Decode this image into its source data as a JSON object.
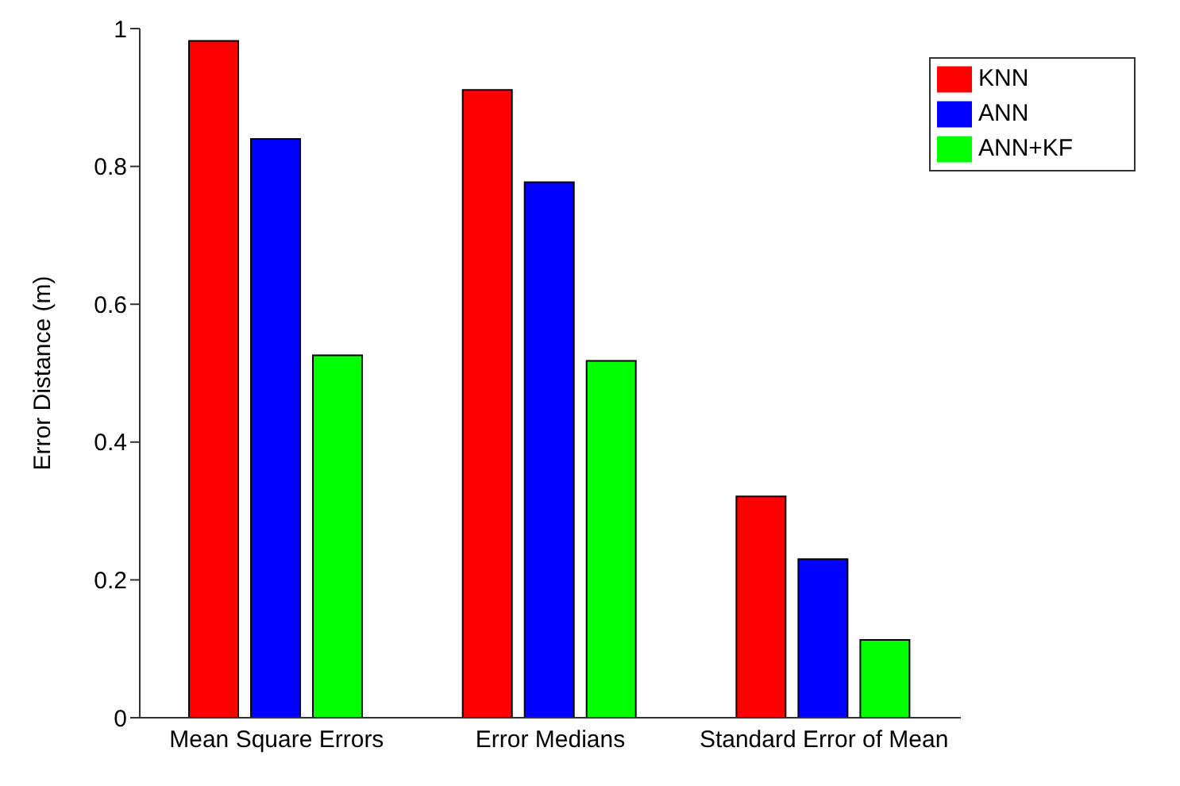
{
  "chart_data": {
    "type": "bar",
    "ylabel": "Error Distance (m)",
    "categories": [
      "Mean Square Errors",
      "Error Medians",
      "Standard Error of Mean"
    ],
    "series": [
      {
        "name": "KNN",
        "color": "#ff0000",
        "values": [
          0.982,
          0.911,
          0.321
        ]
      },
      {
        "name": "ANN",
        "color": "#0000ff",
        "values": [
          0.84,
          0.777,
          0.23
        ]
      },
      {
        "name": "ANN+KF",
        "color": "#00ff00",
        "values": [
          0.526,
          0.518,
          0.113
        ]
      }
    ],
    "ylim": [
      0,
      1
    ],
    "yticks": [
      0,
      0.2,
      0.4,
      0.6,
      0.8,
      1
    ],
    "legend": "top right"
  }
}
